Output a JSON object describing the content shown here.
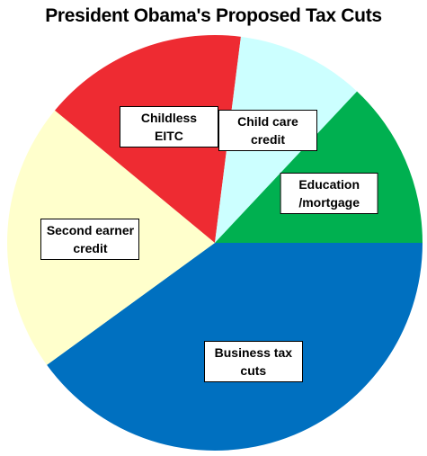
{
  "chart_data": {
    "type": "pie",
    "title": "President Obama's Proposed Tax Cuts",
    "categories": [
      "Business tax cuts",
      "Second earner credit",
      "Childless EITC",
      "Child care credit",
      "Education /mortgage"
    ],
    "values": [
      40,
      21,
      16,
      10,
      13
    ],
    "colors": [
      "#0070c0",
      "#ffffcc",
      "#ee2b32",
      "#ccffff",
      "#00b050"
    ]
  }
}
